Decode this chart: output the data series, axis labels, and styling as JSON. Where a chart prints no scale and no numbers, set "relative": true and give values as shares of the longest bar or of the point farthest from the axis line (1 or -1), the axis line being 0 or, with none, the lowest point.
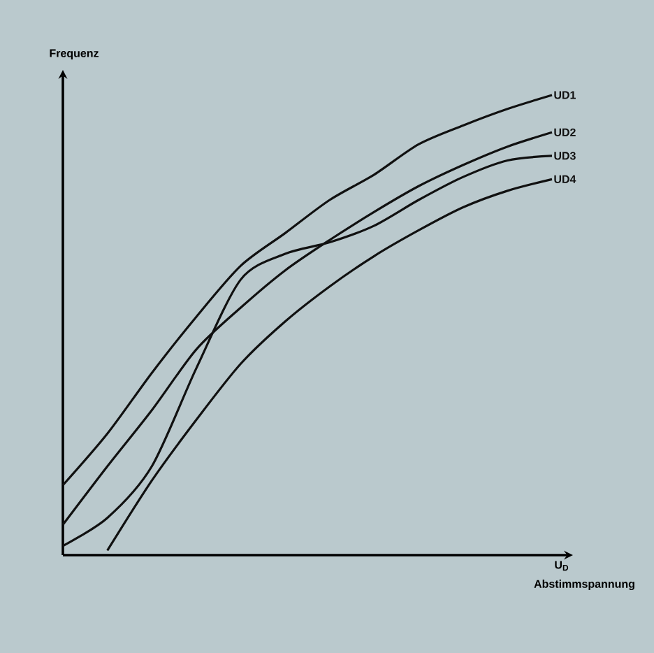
{
  "chart_data": {
    "type": "line",
    "relative": true,
    "ylabel": "Frequenz",
    "xlabel": "Abstimmspannung",
    "annotations": [
      "U$_{D}$"
    ],
    "categories": [
      null,
      null,
      null,
      null,
      null,
      null,
      null,
      null,
      null,
      null,
      null,
      null
    ],
    "series": [
      {
        "name": "UD1",
        "color": "#111111",
        "values": [
          0.152,
          0.264,
          0.396,
          0.518,
          0.629,
          0.7,
          0.772,
          0.827,
          0.893,
          0.934,
          0.97,
          1.0
        ]
      },
      {
        "name": "UD2",
        "color": "#111111",
        "values": [
          0.066,
          0.193,
          0.315,
          0.447,
          0.538,
          0.619,
          0.685,
          0.746,
          0.802,
          0.848,
          0.888,
          0.919
        ]
      },
      {
        "name": "UD3",
        "color": "#111111",
        "values": [
          0.02,
          0.081,
          0.193,
          0.406,
          0.599,
          0.655,
          0.68,
          0.716,
          0.772,
          0.822,
          0.858,
          0.868
        ]
      },
      {
        "name": "UD4",
        "color": "#111111",
        "values": [
          null,
          0.01,
          0.162,
          0.294,
          0.416,
          0.508,
          0.584,
          0.65,
          0.706,
          0.756,
          0.792,
          0.817
        ]
      }
    ]
  }
}
